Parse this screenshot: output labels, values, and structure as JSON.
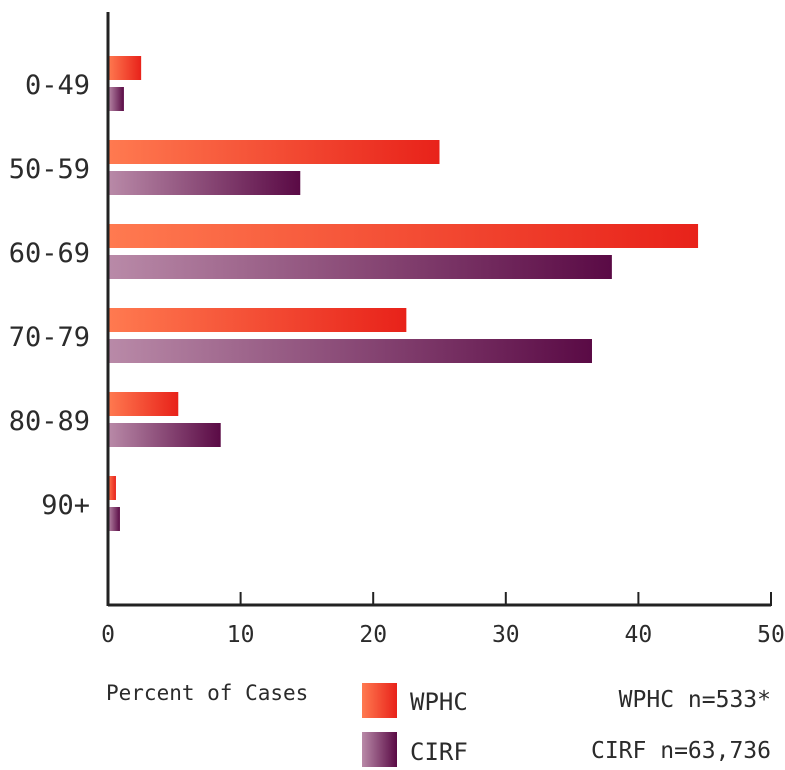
{
  "chart_data": {
    "type": "bar",
    "orientation": "horizontal",
    "categories": [
      "0-49",
      "50-59",
      "60-69",
      "70-79",
      "80-89",
      "90+"
    ],
    "series": [
      {
        "name": "WPHC",
        "values": [
          2.5,
          25.0,
          44.5,
          22.5,
          5.3,
          0.6
        ],
        "color_start": "#ff7a50",
        "color_end": "#e8221a"
      },
      {
        "name": "CIRF",
        "values": [
          1.2,
          14.5,
          38.0,
          36.5,
          8.5,
          0.9
        ],
        "color_start": "#b98aa8",
        "color_end": "#5a0a45"
      }
    ],
    "xlabel": "Percent of Cases",
    "xlim": [
      0,
      50
    ],
    "xticks": [
      0,
      10,
      20,
      30,
      40,
      50
    ],
    "legend_position": "bottom",
    "grid": false
  },
  "notes": {
    "wphc_n": "WPHC n=533*",
    "cirf_n": "CIRF n=63,736"
  }
}
